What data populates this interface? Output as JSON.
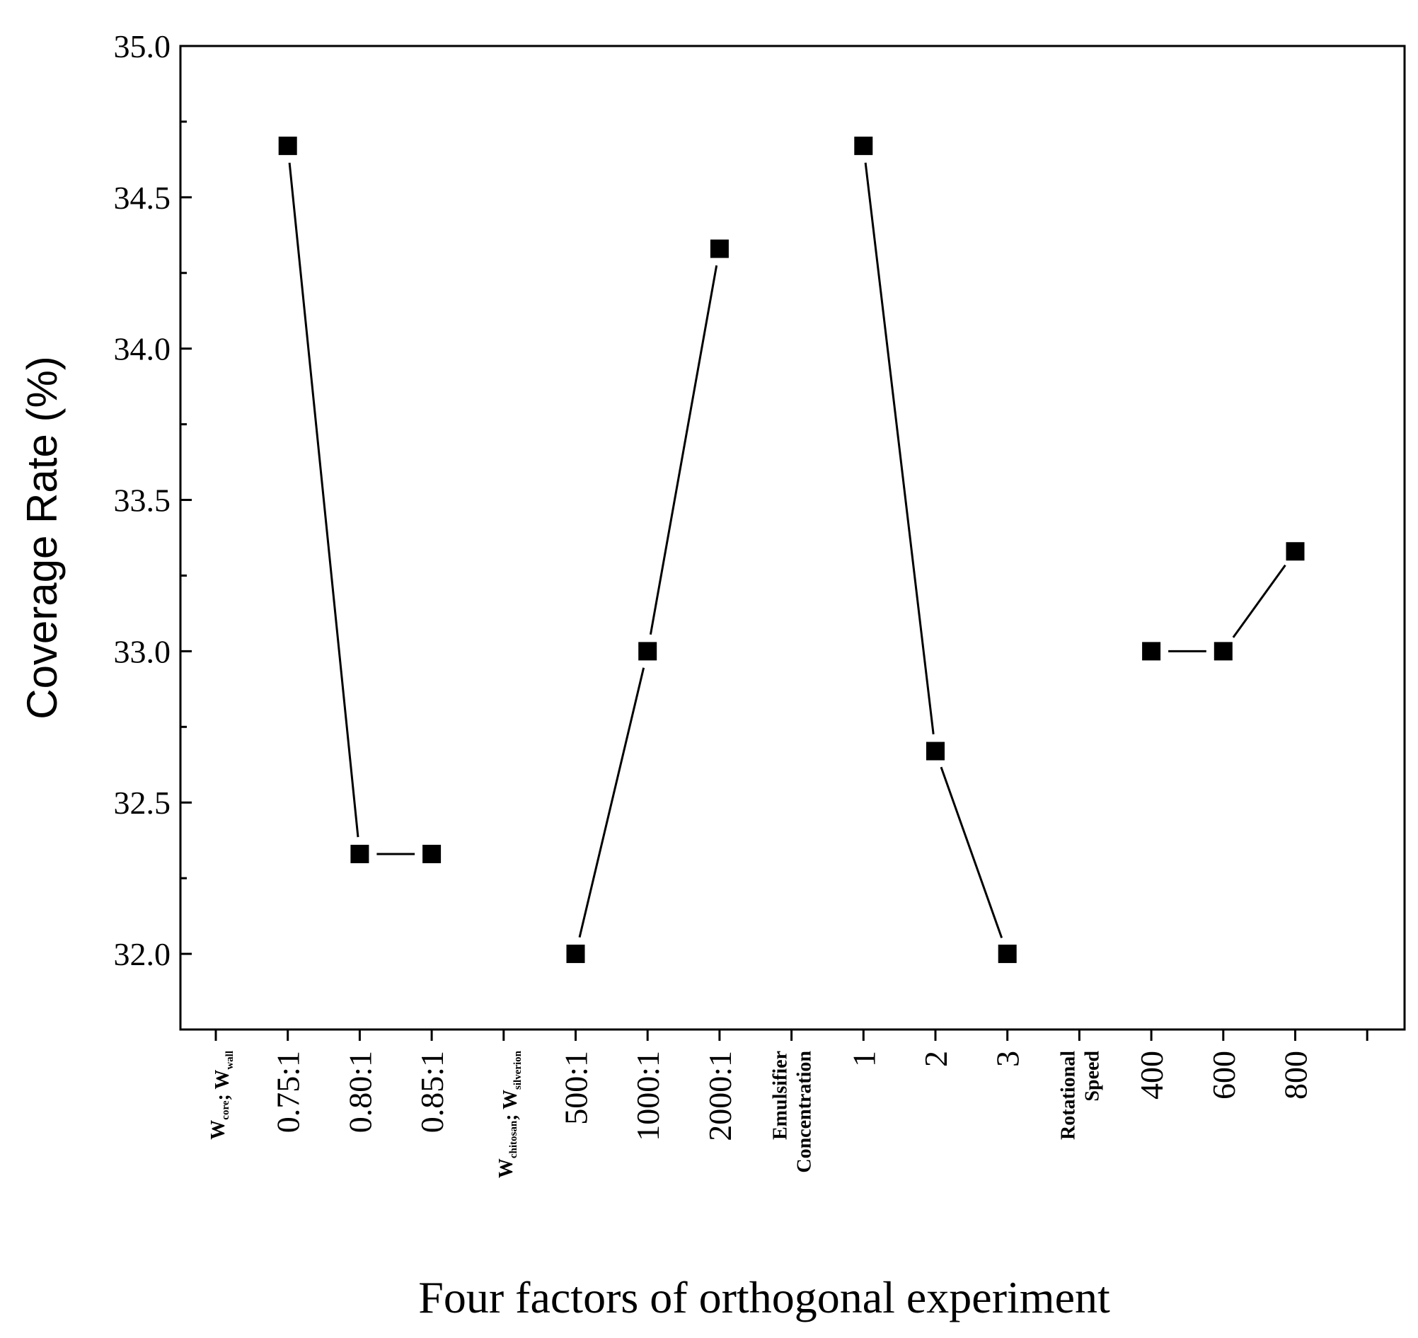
{
  "chart_data": {
    "type": "line",
    "title": "",
    "xlabel": "Four factors of orthogonal experiment",
    "ylabel": "Coverage Rate  (%)",
    "ylim": [
      31.75,
      35.0
    ],
    "yticks": [
      "32.0",
      "32.5",
      "33.0",
      "33.5",
      "34.0",
      "34.5",
      "35.0"
    ],
    "grid": false,
    "categories": [
      {
        "label": "W_core : W_wall",
        "kind": "factor",
        "parts": [
          [
            "W",
            "core"
          ],
          [
            "; W",
            "wall"
          ]
        ]
      },
      {
        "label": "0.75:1",
        "kind": "level"
      },
      {
        "label": "0.80:1",
        "kind": "level"
      },
      {
        "label": "0.85:1",
        "kind": "level"
      },
      {
        "label": "W_chitosan : W_silverion",
        "kind": "factor",
        "parts": [
          [
            "W",
            "chitosan"
          ],
          [
            "; W",
            "silverion"
          ]
        ]
      },
      {
        "label": "500:1",
        "kind": "level"
      },
      {
        "label": "1000:1",
        "kind": "level"
      },
      {
        "label": "2000:1",
        "kind": "level"
      },
      {
        "label": "Emulsifier Concentration",
        "kind": "factor",
        "lines": [
          "Emulsifier",
          "Concentration"
        ]
      },
      {
        "label": "1",
        "kind": "level"
      },
      {
        "label": "2",
        "kind": "level"
      },
      {
        "label": "3",
        "kind": "level"
      },
      {
        "label": "Rotational Speed",
        "kind": "factor",
        "lines": [
          "Rotational",
          "Speed"
        ]
      },
      {
        "label": "400",
        "kind": "level"
      },
      {
        "label": "600",
        "kind": "level"
      },
      {
        "label": "800",
        "kind": "level"
      }
    ],
    "series": [
      {
        "name": "W_core : W_wall",
        "x": [
          1,
          2,
          3
        ],
        "values": [
          34.67,
          32.33,
          32.33
        ]
      },
      {
        "name": "W_chitosan : W_silverion",
        "x": [
          5,
          6,
          7
        ],
        "values": [
          32.0,
          33.0,
          34.33
        ]
      },
      {
        "name": "Emulsifier Concentration",
        "x": [
          9,
          10,
          11
        ],
        "values": [
          34.67,
          32.67,
          32.0
        ]
      },
      {
        "name": "Rotational Speed",
        "x": [
          13,
          14,
          15
        ],
        "values": [
          33.0,
          33.0,
          33.33
        ]
      }
    ]
  }
}
